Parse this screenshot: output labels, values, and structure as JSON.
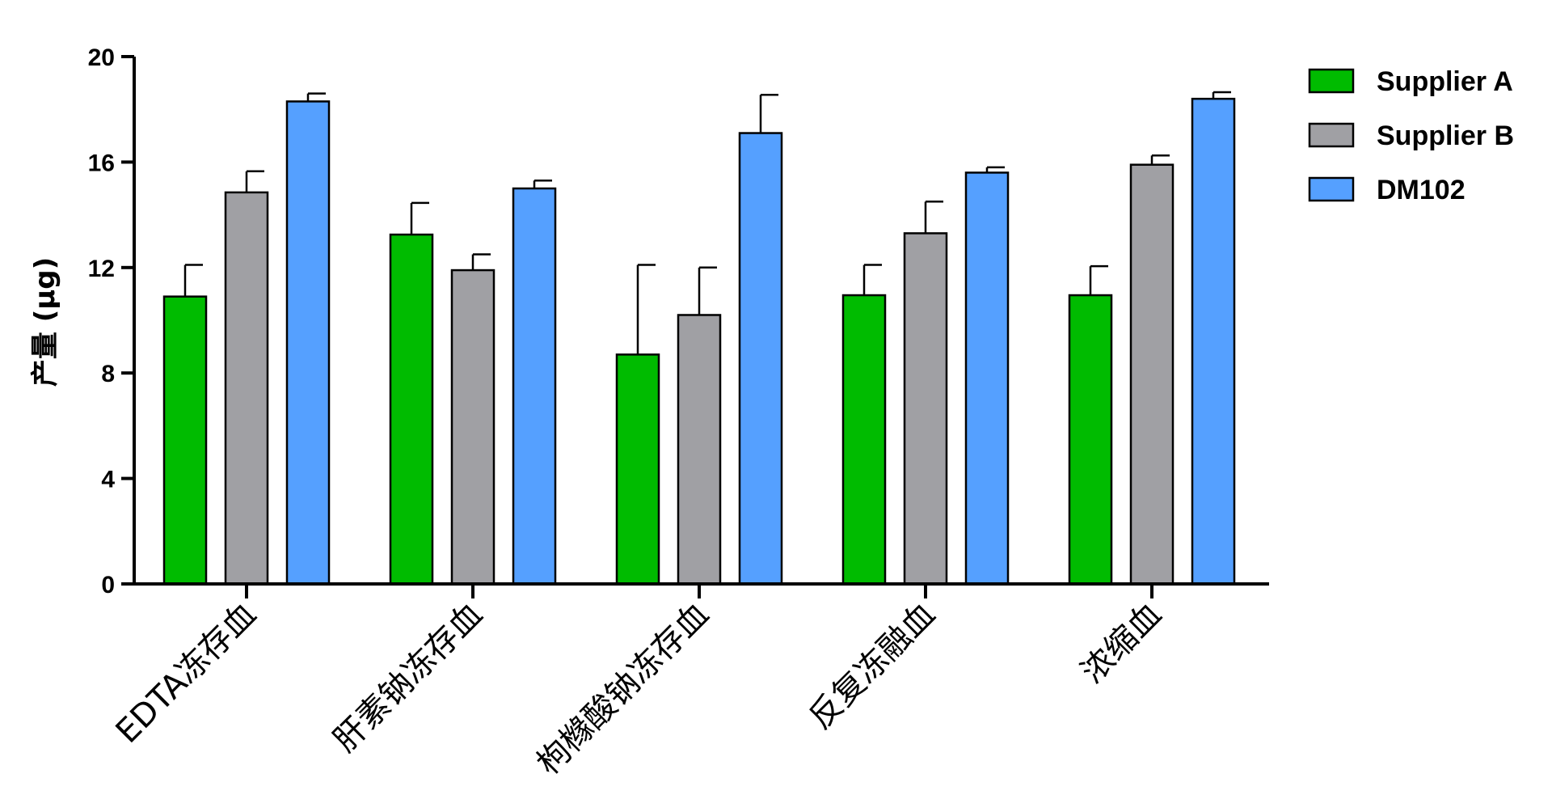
{
  "chart_data": {
    "type": "bar",
    "ylabel": "产量 (μg)",
    "xlabel": "",
    "ylim": [
      0,
      20
    ],
    "yticks": [
      "0",
      "4",
      "8",
      "12",
      "16",
      "20"
    ],
    "grid": false,
    "legend_position": "top-right",
    "categories": [
      "EDTA冻存血",
      "肝素钠冻存血",
      "枸橼酸钠冻存血",
      "反复冻融血",
      "浓缩血"
    ],
    "series": [
      {
        "name": "Supplier A",
        "color": "#00bb00",
        "values": [
          10.9,
          13.25,
          8.7,
          10.95,
          10.95
        ],
        "errors": [
          1.2,
          1.2,
          3.4,
          1.15,
          1.1
        ]
      },
      {
        "name": "Supplier B",
        "color": "#a0a0a4",
        "values": [
          14.85,
          11.9,
          10.2,
          13.3,
          15.9
        ],
        "errors": [
          0.8,
          0.6,
          1.8,
          1.2,
          0.35
        ]
      },
      {
        "name": "DM102",
        "color": "#55a0ff",
        "values": [
          18.3,
          15.0,
          17.1,
          15.6,
          18.4
        ],
        "errors": [
          0.3,
          0.3,
          1.45,
          0.2,
          0.25
        ]
      }
    ]
  }
}
